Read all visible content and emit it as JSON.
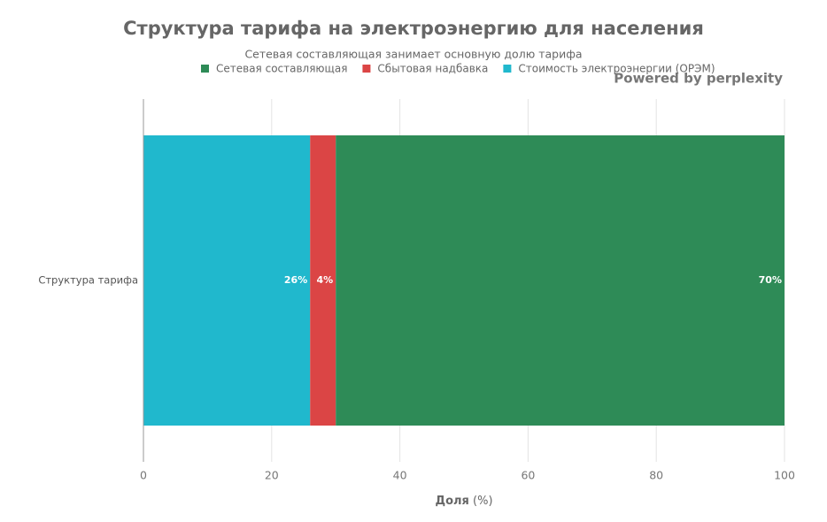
{
  "chart_data": {
    "type": "stacked-bar-horizontal",
    "title": "Структура тарифа на электроэнергию для населения",
    "subtitle": "Сетевая составляющая занимает основную долю тарифа",
    "watermark": "Powered by perplexity",
    "categories": [
      "Структура тарифа"
    ],
    "series": [
      {
        "name": "Сетевая составляющая",
        "color": "#2e8b57",
        "values": [
          70
        ],
        "value_labels": [
          "70%"
        ]
      },
      {
        "name": "Сбытовая надбавка",
        "color": "#db4545",
        "values": [
          4
        ],
        "value_labels": [
          "4%"
        ]
      },
      {
        "name": "Стоимость электроэнергии (ОРЭМ)",
        "color": "#20b8cd",
        "values": [
          26
        ],
        "value_labels": [
          "26%"
        ]
      }
    ],
    "x_label": {
      "text": "Доля",
      "unit": "(%)"
    },
    "xlim": [
      0,
      100
    ],
    "xticks": [
      0,
      20,
      40,
      60,
      80,
      100
    ],
    "grid": true
  }
}
